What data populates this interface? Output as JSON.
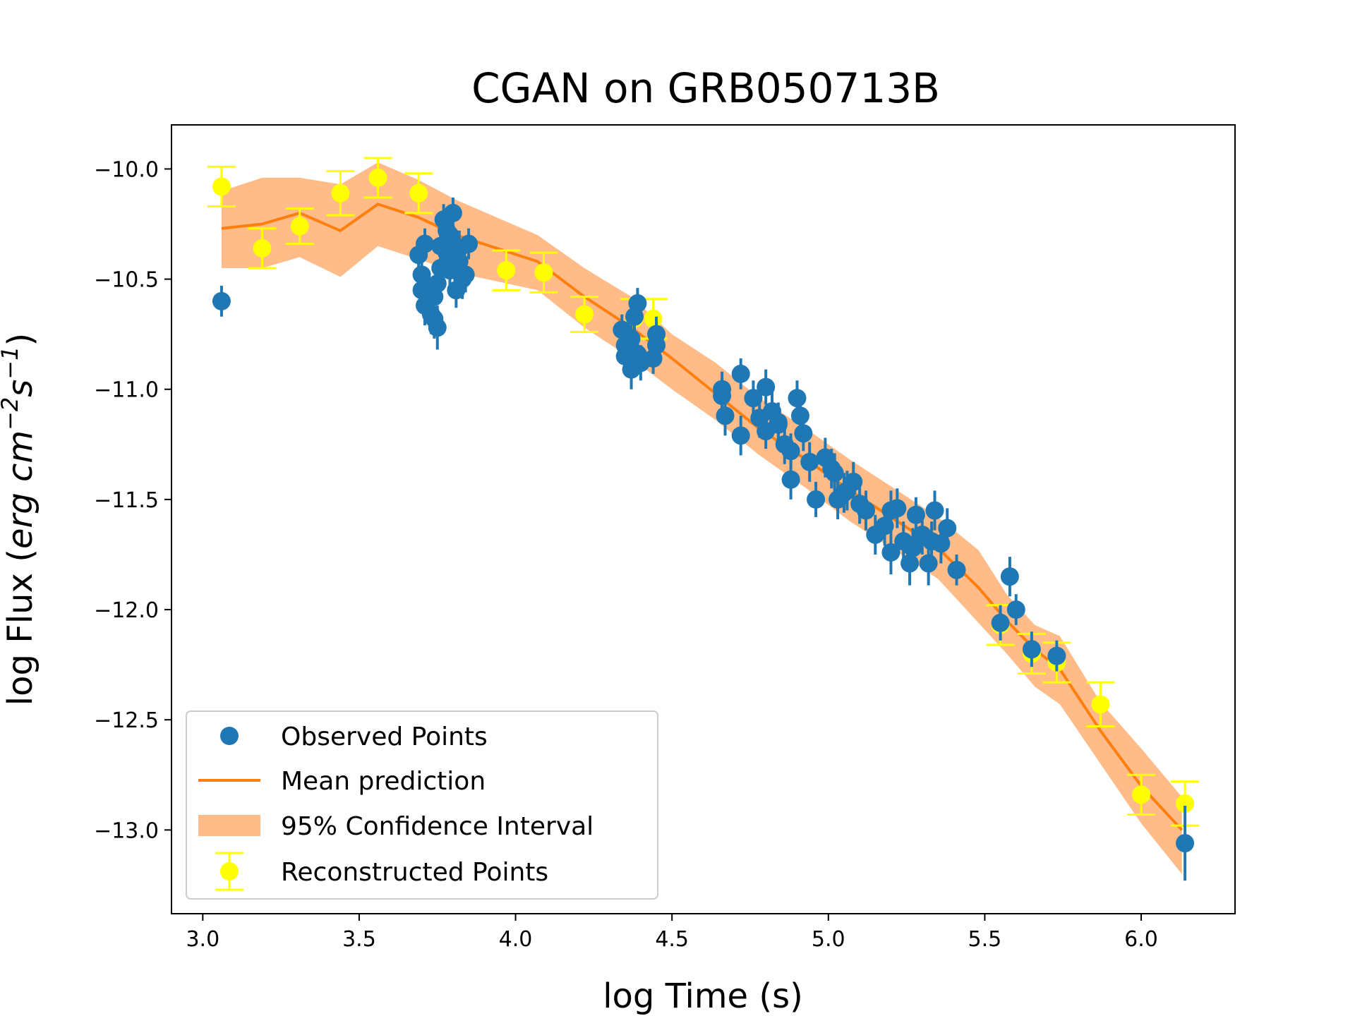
{
  "chart_data": {
    "type": "scatter",
    "title": "CGAN on GRB050713B",
    "xlabel": "log Time (s)",
    "ylabel_prefix": "log Flux (",
    "ylabel_math": "erg cm",
    "ylabel_exp1": "−2",
    "ylabel_mid": "s",
    "ylabel_exp2": "−1",
    "ylabel_suffix": ")",
    "xlim": [
      2.9,
      6.3
    ],
    "ylim": [
      -13.38,
      -9.8
    ],
    "xticks": [
      3.0,
      3.5,
      4.0,
      4.5,
      5.0,
      5.5,
      6.0
    ],
    "xtick_labels": [
      "3.0",
      "3.5",
      "4.0",
      "4.5",
      "5.0",
      "5.5",
      "6.0"
    ],
    "yticks": [
      -10.0,
      -10.5,
      -11.0,
      -11.5,
      -12.0,
      -12.5,
      -13.0
    ],
    "ytick_labels": [
      "−10.0",
      "−10.5",
      "−11.0",
      "−11.5",
      "−12.0",
      "−12.5",
      "−13.0"
    ],
    "grid": false,
    "legend_position": "lower-left",
    "colors": {
      "observed": "#1f77b4",
      "mean": "#ff7f0e",
      "ci": "#ffbb88",
      "reconstructed": "#ffff00"
    },
    "legend": [
      {
        "key": "observed",
        "label": "Observed Points"
      },
      {
        "key": "mean",
        "label": "Mean prediction"
      },
      {
        "key": "ci",
        "label": "95% Confidence Interval"
      },
      {
        "key": "reconstructed",
        "label": "Reconstructed Points"
      }
    ],
    "mean_prediction": {
      "name": "Mean prediction",
      "x": [
        3.06,
        3.19,
        3.31,
        3.44,
        3.56,
        3.69,
        3.81,
        3.94,
        4.07,
        4.22,
        4.37,
        4.5,
        4.64,
        4.78,
        4.93,
        5.07,
        5.2,
        5.35,
        5.48,
        5.57,
        5.66,
        5.74,
        5.87,
        6.0,
        6.13
      ],
      "y": [
        -10.27,
        -10.25,
        -10.2,
        -10.28,
        -10.16,
        -10.22,
        -10.3,
        -10.36,
        -10.42,
        -10.58,
        -10.72,
        -10.86,
        -11.02,
        -11.18,
        -11.32,
        -11.46,
        -11.58,
        -11.72,
        -11.9,
        -12.05,
        -12.18,
        -12.27,
        -12.55,
        -12.8,
        -13.0
      ]
    },
    "confidence_interval": {
      "name": "95% Confidence Interval",
      "x": [
        3.06,
        3.19,
        3.31,
        3.44,
        3.56,
        3.69,
        3.81,
        3.94,
        4.07,
        4.22,
        4.37,
        4.5,
        4.64,
        4.78,
        4.93,
        5.07,
        5.2,
        5.35,
        5.48,
        5.57,
        5.66,
        5.74,
        5.87,
        6.0,
        6.13
      ],
      "upper": [
        -10.1,
        -10.04,
        -10.04,
        -10.07,
        -9.97,
        -10.05,
        -10.14,
        -10.22,
        -10.3,
        -10.45,
        -10.58,
        -10.75,
        -10.88,
        -11.04,
        -11.18,
        -11.32,
        -11.44,
        -11.58,
        -11.73,
        -11.93,
        -12.07,
        -12.12,
        -12.42,
        -12.63,
        -12.85
      ],
      "lower": [
        -10.45,
        -10.45,
        -10.4,
        -10.49,
        -10.35,
        -10.41,
        -10.47,
        -10.51,
        -10.55,
        -10.72,
        -10.86,
        -11.0,
        -11.14,
        -11.3,
        -11.45,
        -11.6,
        -11.72,
        -11.86,
        -12.06,
        -12.2,
        -12.35,
        -12.43,
        -12.7,
        -12.97,
        -13.2
      ]
    },
    "reconstructed_points": {
      "name": "Reconstructed Points",
      "x": [
        3.06,
        3.19,
        3.31,
        3.44,
        3.56,
        3.69,
        3.97,
        4.09,
        4.22,
        4.38,
        4.44,
        5.55,
        5.65,
        5.73,
        5.87,
        6.0,
        6.14
      ],
      "y": [
        -10.08,
        -10.36,
        -10.26,
        -10.11,
        -10.04,
        -10.11,
        -10.46,
        -10.47,
        -10.66,
        -10.68,
        -10.68,
        -12.07,
        -12.2,
        -12.24,
        -12.43,
        -12.84,
        -12.88
      ],
      "err": [
        0.09,
        0.09,
        0.08,
        0.1,
        0.09,
        0.09,
        0.09,
        0.09,
        0.08,
        0.09,
        0.09,
        0.09,
        0.09,
        0.09,
        0.1,
        0.09,
        0.1
      ]
    },
    "observed_points": {
      "name": "Observed Points",
      "x": [
        3.06,
        3.69,
        3.7,
        3.71,
        3.72,
        3.73,
        3.74,
        3.75,
        3.76,
        3.77,
        3.78,
        3.79,
        3.8,
        3.81,
        3.82,
        3.83,
        3.84,
        3.85,
        3.7,
        3.72,
        3.74,
        3.76,
        3.78,
        3.8,
        3.82,
        3.71,
        3.75,
        3.79,
        4.34,
        4.35,
        4.36,
        4.37,
        4.38,
        4.39,
        4.4,
        4.35,
        4.37,
        4.39,
        4.45,
        4.45,
        4.44,
        4.66,
        4.67,
        4.66,
        4.72,
        4.72,
        4.76,
        4.78,
        4.8,
        4.82,
        4.84,
        4.86,
        4.88,
        4.9,
        4.92,
        4.94,
        4.96,
        4.99,
        5.01,
        5.03,
        5.05,
        5.08,
        5.1,
        5.12,
        5.15,
        5.18,
        5.2,
        5.22,
        5.24,
        5.26,
        5.28,
        5.3,
        5.32,
        5.34,
        5.36,
        5.38,
        4.8,
        4.84,
        4.88,
        4.91,
        5.02,
        5.06,
        5.2,
        5.27,
        5.33,
        5.41,
        5.55,
        5.58,
        5.6,
        5.65,
        5.73,
        6.14
      ],
      "y": [
        -10.6,
        -10.39,
        -10.48,
        -10.34,
        -10.53,
        -10.66,
        -10.58,
        -10.72,
        -10.45,
        -10.23,
        -10.38,
        -10.3,
        -10.2,
        -10.55,
        -10.42,
        -10.5,
        -10.48,
        -10.34,
        -10.55,
        -10.6,
        -10.68,
        -10.35,
        -10.28,
        -10.4,
        -10.36,
        -10.62,
        -10.52,
        -10.46,
        -10.73,
        -10.85,
        -10.79,
        -10.91,
        -10.67,
        -10.61,
        -10.88,
        -10.8,
        -10.77,
        -10.84,
        -10.75,
        -10.8,
        -10.86,
        -11.03,
        -11.12,
        -11.0,
        -10.93,
        -11.21,
        -11.04,
        -11.13,
        -10.99,
        -11.1,
        -11.15,
        -11.25,
        -11.41,
        -11.04,
        -11.2,
        -11.33,
        -11.5,
        -11.31,
        -11.36,
        -11.5,
        -11.47,
        -11.42,
        -11.52,
        -11.55,
        -11.66,
        -11.62,
        -11.74,
        -11.54,
        -11.69,
        -11.79,
        -11.57,
        -11.66,
        -11.79,
        -11.55,
        -11.7,
        -11.63,
        -11.19,
        -11.16,
        -11.28,
        -11.12,
        -11.38,
        -11.46,
        -11.55,
        -11.72,
        -11.69,
        -11.82,
        -12.06,
        -11.85,
        -12.0,
        -12.18,
        -12.21,
        -13.06
      ],
      "err": [
        0.07,
        0.07,
        0.07,
        0.07,
        0.07,
        0.09,
        0.08,
        0.1,
        0.07,
        0.07,
        0.08,
        0.07,
        0.07,
        0.08,
        0.07,
        0.09,
        0.08,
        0.07,
        0.08,
        0.09,
        0.09,
        0.08,
        0.07,
        0.08,
        0.08,
        0.09,
        0.08,
        0.08,
        0.07,
        0.08,
        0.09,
        0.09,
        0.08,
        0.07,
        0.08,
        0.08,
        0.08,
        0.08,
        0.08,
        0.07,
        0.07,
        0.08,
        0.09,
        0.08,
        0.07,
        0.09,
        0.08,
        0.09,
        0.08,
        0.09,
        0.09,
        0.09,
        0.09,
        0.08,
        0.08,
        0.09,
        0.08,
        0.09,
        0.09,
        0.09,
        0.09,
        0.09,
        0.09,
        0.09,
        0.09,
        0.09,
        0.1,
        0.09,
        0.09,
        0.1,
        0.08,
        0.09,
        0.1,
        0.09,
        0.09,
        0.09,
        0.08,
        0.08,
        0.08,
        0.09,
        0.09,
        0.09,
        0.09,
        0.09,
        0.09,
        0.07,
        0.08,
        0.09,
        0.07,
        0.08,
        0.07,
        0.17
      ]
    }
  }
}
